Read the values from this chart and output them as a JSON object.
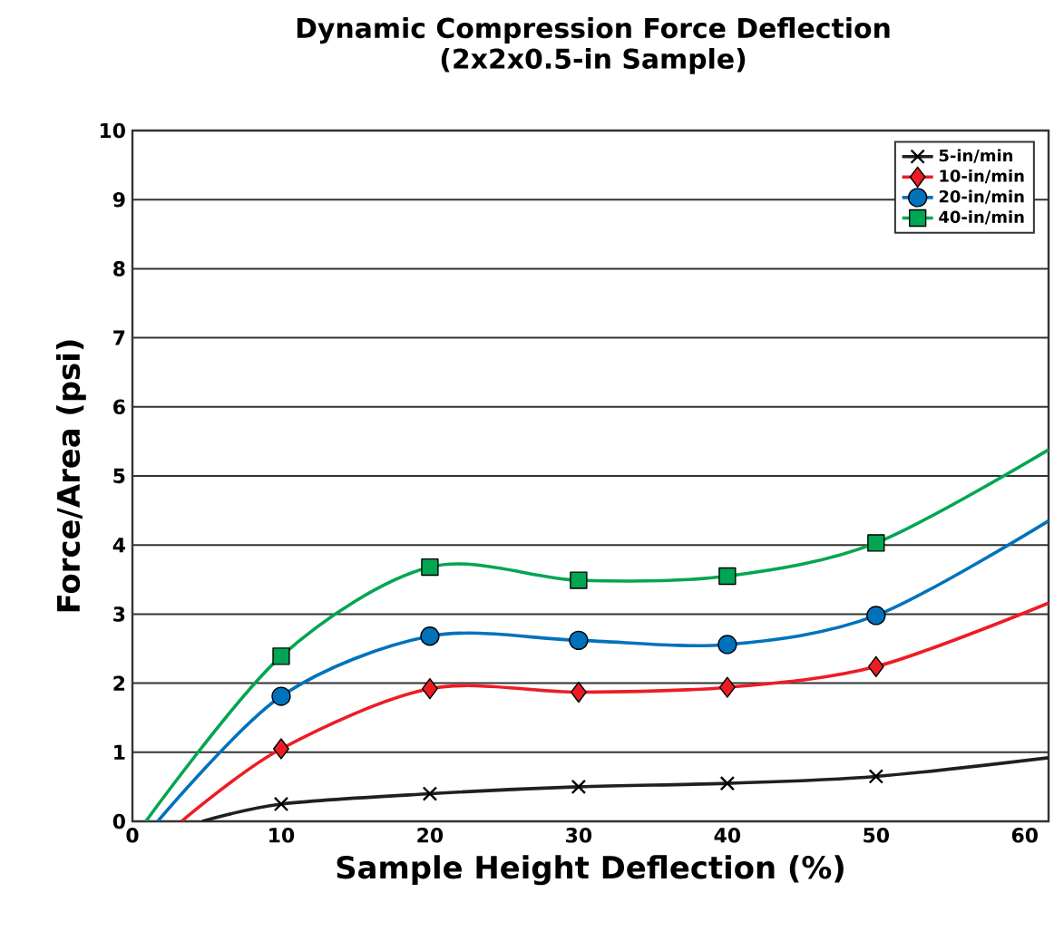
{
  "chart_data": {
    "type": "line",
    "title": "Dynamic Compression Force Deflection",
    "subtitle": "(2x2x0.5-in Sample)",
    "xlabel": "Sample Height Deflection (%)",
    "ylabel": "Force/Area (psi)",
    "xlim": [
      0,
      61.6
    ],
    "ylim": [
      0,
      10
    ],
    "xticks": [
      0,
      10,
      20,
      30,
      40,
      50,
      60
    ],
    "yticks": [
      0,
      1,
      2,
      3,
      4,
      5,
      6,
      7,
      8,
      9,
      10
    ],
    "grid": "y",
    "legend": "top right",
    "line_style": "solid",
    "series": [
      {
        "name": "5-in/min",
        "color": "#231f20",
        "marker": "cross",
        "x": [
          4.7,
          10,
          20,
          30,
          40,
          50,
          61.6
        ],
        "values": [
          0,
          0.25,
          0.4,
          0.5,
          0.55,
          0.65,
          0.92
        ]
      },
      {
        "name": "10-in/min",
        "color": "#ed1c24",
        "marker": "diamond",
        "x": [
          3.3,
          10,
          20,
          30,
          40,
          50,
          61.6
        ],
        "values": [
          0,
          1.05,
          1.92,
          1.87,
          1.94,
          2.24,
          3.16
        ]
      },
      {
        "name": "20-in/min",
        "color": "#0072bc",
        "marker": "circle",
        "x": [
          1.7,
          10,
          20,
          30,
          40,
          50,
          61.6
        ],
        "values": [
          0,
          1.81,
          2.68,
          2.62,
          2.56,
          2.98,
          4.35
        ]
      },
      {
        "name": "40-in/min",
        "color": "#00a651",
        "marker": "square",
        "x": [
          0.9,
          10,
          20,
          30,
          40,
          50,
          61.6
        ],
        "values": [
          0,
          2.39,
          3.68,
          3.49,
          3.55,
          4.03,
          5.38
        ]
      }
    ]
  }
}
